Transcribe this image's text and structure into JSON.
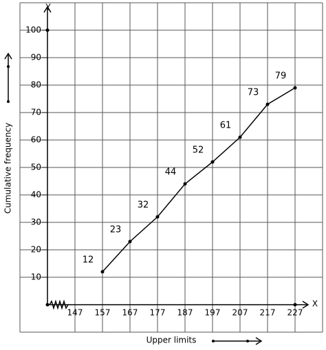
{
  "chart_data": {
    "type": "line",
    "x_label": "Upper limits",
    "y_label": "Cumulative frequency",
    "x_axis_name": "X",
    "y_axis_name": "Y",
    "x": [
      157,
      167,
      177,
      187,
      197,
      207,
      217,
      227
    ],
    "values": [
      12,
      23,
      32,
      44,
      52,
      61,
      73,
      79
    ],
    "color": "#000000",
    "xlim": [
      127,
      237
    ],
    "xticks": [
      147,
      157,
      167,
      177,
      187,
      197,
      207,
      217,
      227
    ],
    "ylim": [
      -10,
      110
    ],
    "yticks": [
      10,
      20,
      30,
      40,
      50,
      60,
      70,
      80,
      90,
      100
    ],
    "grid": true
  }
}
